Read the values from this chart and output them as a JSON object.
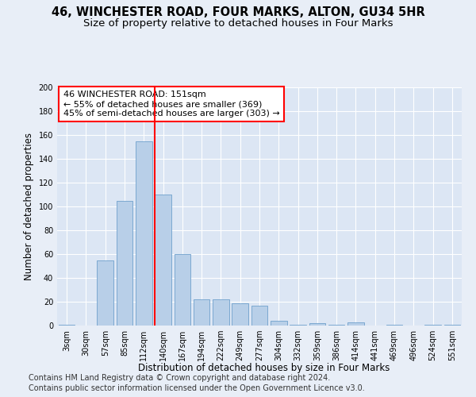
{
  "title": "46, WINCHESTER ROAD, FOUR MARKS, ALTON, GU34 5HR",
  "subtitle": "Size of property relative to detached houses in Four Marks",
  "xlabel": "Distribution of detached houses by size in Four Marks",
  "ylabel": "Number of detached properties",
  "categories": [
    "3sqm",
    "30sqm",
    "57sqm",
    "85sqm",
    "112sqm",
    "140sqm",
    "167sqm",
    "194sqm",
    "222sqm",
    "249sqm",
    "277sqm",
    "304sqm",
    "332sqm",
    "359sqm",
    "386sqm",
    "414sqm",
    "441sqm",
    "469sqm",
    "496sqm",
    "524sqm",
    "551sqm"
  ],
  "values": [
    1,
    0,
    55,
    105,
    155,
    110,
    60,
    22,
    22,
    19,
    17,
    4,
    1,
    2,
    1,
    3,
    0,
    1,
    0,
    1,
    1
  ],
  "bar_color": "#b8cfe8",
  "bar_edge_color": "#6fa0cc",
  "background_color": "#e8eef7",
  "plot_bg_color": "#dce6f4",
  "grid_color": "#ffffff",
  "vline_color": "red",
  "annotation_text": "46 WINCHESTER ROAD: 151sqm\n← 55% of detached houses are smaller (369)\n45% of semi-detached houses are larger (303) →",
  "annotation_box_color": "white",
  "annotation_box_edge": "red",
  "ylim": [
    0,
    200
  ],
  "yticks": [
    0,
    20,
    40,
    60,
    80,
    100,
    120,
    140,
    160,
    180,
    200
  ],
  "footer1": "Contains HM Land Registry data © Crown copyright and database right 2024.",
  "footer2": "Contains public sector information licensed under the Open Government Licence v3.0.",
  "title_fontsize": 10.5,
  "subtitle_fontsize": 9.5,
  "axis_label_fontsize": 8.5,
  "tick_fontsize": 7,
  "annotation_fontsize": 8,
  "footer_fontsize": 7
}
